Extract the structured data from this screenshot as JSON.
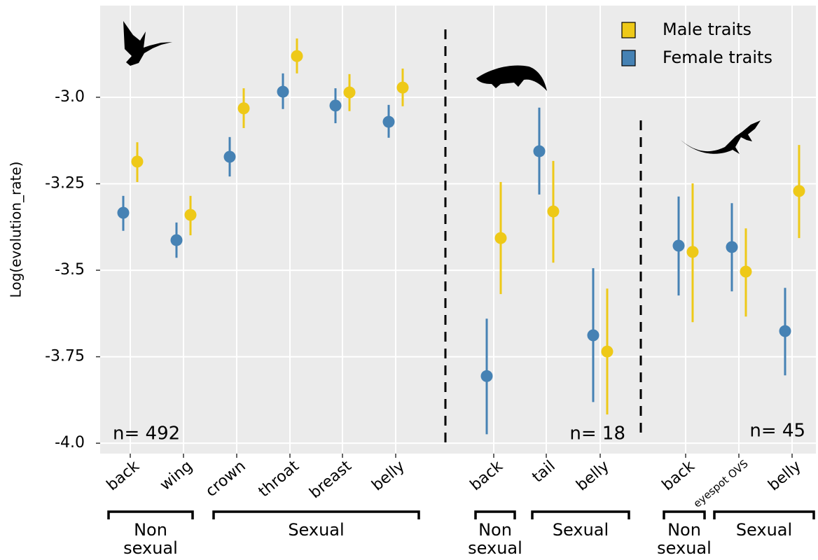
{
  "chart_data": {
    "type": "pointrange",
    "y_label": "Log(evolution_rate)",
    "categories": [
      "back",
      "wing",
      "crown",
      "throat",
      "breast",
      "belly",
      "back",
      "tail",
      "belly",
      "back",
      "eyespot OVS",
      "belly"
    ],
    "groups": [
      "Non sexual",
      "Sexual",
      "Non sexual",
      "Sexual",
      "Non sexual",
      "Sexual"
    ],
    "panel_labels": [
      "n= 492",
      "n= 18",
      "n= 45"
    ],
    "series": [
      {
        "name": "Male traits",
        "color": "#eec918",
        "values": [
          -3.186,
          -3.34,
          -3.032,
          -2.881,
          -2.986,
          -2.972,
          -3.407,
          -3.33,
          -3.735,
          -3.447,
          -3.504,
          -3.271
        ],
        "lower": [
          -3.245,
          -3.399,
          -3.089,
          -2.931,
          -3.04,
          -3.026,
          -3.569,
          -3.478,
          -3.917,
          -3.65,
          -3.634,
          -3.407
        ],
        "upper": [
          -3.13,
          -3.285,
          -2.974,
          -2.83,
          -2.933,
          -2.917,
          -3.245,
          -3.184,
          -3.553,
          -3.249,
          -3.379,
          -3.138
        ]
      },
      {
        "name": "Female traits",
        "color": "#4682b4",
        "values": [
          -3.334,
          -3.413,
          -3.172,
          -2.984,
          -3.024,
          -3.071,
          -3.806,
          -3.156,
          -3.688,
          -3.429,
          -3.433,
          -3.676
        ],
        "lower": [
          -3.386,
          -3.464,
          -3.229,
          -3.034,
          -3.075,
          -3.117,
          -3.974,
          -3.281,
          -3.881,
          -3.573,
          -3.561,
          -3.804
        ],
        "upper": [
          -3.285,
          -3.362,
          -3.115,
          -2.931,
          -2.974,
          -3.022,
          -3.64,
          -3.03,
          -3.494,
          -3.287,
          -3.306,
          -3.551
        ]
      }
    ],
    "ylim": [
      -4.03,
      -2.735
    ],
    "yticks": [
      {
        "value": -4.0,
        "label": "-4.0"
      },
      -3.75,
      -3.5,
      -3.25,
      {
        "value": -3.0,
        "label": "-3.0"
      }
    ],
    "grid": true,
    "legend": "top-right"
  }
}
